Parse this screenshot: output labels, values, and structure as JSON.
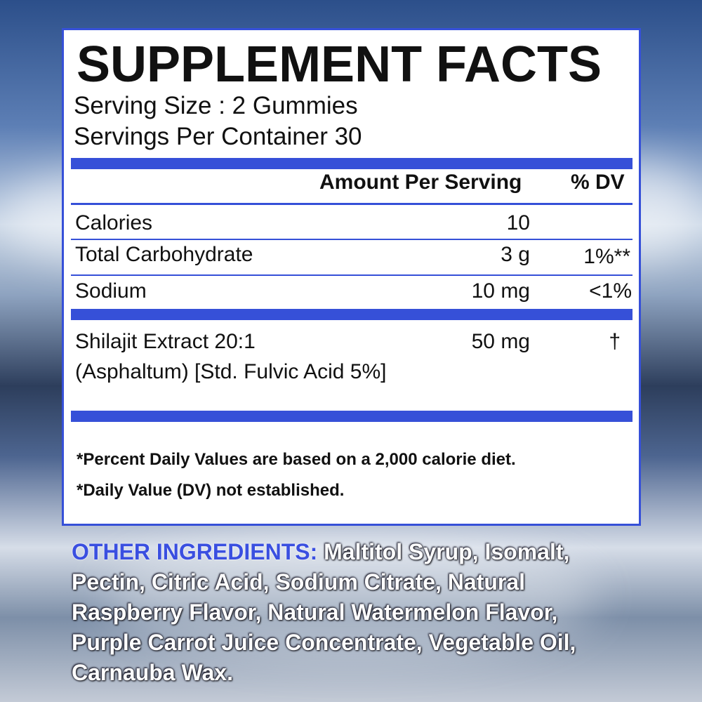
{
  "title": "SUPPLEMENT FACTS",
  "serving_size": "Serving Size : 2 Gummies",
  "servings_per_container": "Servings Per Container 30",
  "header": {
    "amount": "Amount Per Serving",
    "dv": "% DV"
  },
  "rows": [
    {
      "name": "Calories",
      "amount": "10",
      "dv": ""
    },
    {
      "name": "Total Carbohydrate",
      "amount": "3 g",
      "dv": "1%**"
    },
    {
      "name": "Sodium",
      "amount": "10 mg",
      "dv": "<1%"
    },
    {
      "name": "Shilajit Extract 20:1",
      "name2": "(Asphaltum) [Std. Fulvic Acid 5%]",
      "amount": "50 mg",
      "dv": "†"
    }
  ],
  "footnotes": [
    "*Percent Daily Values are based on a 2,000 calorie diet.",
    "*Daily Value (DV) not established."
  ],
  "other_ingredients": {
    "label": "OTHER INGREDIENTS:",
    "text": " Maltitol Syrup, Isomalt, Pectin, Citric Acid, Sodium Citrate, Natural Raspberry Flavor, Natural Watermelon Flavor, Purple Carrot Juice Concentrate, Vegetable Oil, Carnauba Wax."
  },
  "colors": {
    "accent": "#3650d8"
  }
}
